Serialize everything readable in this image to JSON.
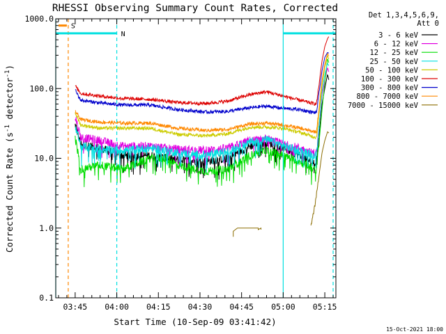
{
  "chart_data": {
    "type": "line",
    "title": "RHESSI Observing Summary Count Rates, Corrected",
    "xlabel": "Start Time (10-Sep-09 03:41:42)",
    "ylabel_main": "Corrected Count Rate (s",
    "ylabel_sup1": "-1",
    "ylabel_mid": " detector",
    "ylabel_sup2": "-1",
    "ylabel_end": ")",
    "xlim_min": [
      -4,
      97
    ],
    "ylim": [
      0.1,
      1000
    ],
    "y_scale": "log",
    "x_ticks": [
      {
        "min": 3,
        "label": "03:45"
      },
      {
        "min": 18,
        "label": "04:00"
      },
      {
        "min": 33,
        "label": "04:15"
      },
      {
        "min": 48,
        "label": "04:30"
      },
      {
        "min": 63,
        "label": "04:45"
      },
      {
        "min": 78,
        "label": "05:00"
      },
      {
        "min": 93,
        "label": "05:15"
      }
    ],
    "y_ticks": [
      {
        "v": 0.1,
        "label": "0.1"
      },
      {
        "v": 1,
        "label": "1.0"
      },
      {
        "v": 10,
        "label": "10.0"
      },
      {
        "v": 100,
        "label": "100.0"
      },
      {
        "v": 1000,
        "label": "1000.0"
      }
    ],
    "legend_header": [
      "Det 1,3,4,5,6,9,",
      "Att 0"
    ],
    "series": [
      {
        "name": "3 - 6 keV",
        "color": "#000000",
        "points": [
          [
            3,
            30
          ],
          [
            5,
            16
          ],
          [
            12,
            14
          ],
          [
            20,
            11
          ],
          [
            30,
            11
          ],
          [
            40,
            9.5
          ],
          [
            50,
            9
          ],
          [
            58,
            10
          ],
          [
            66,
            15
          ],
          [
            72,
            17
          ],
          [
            78,
            14
          ],
          [
            84,
            11
          ],
          [
            88,
            9
          ],
          [
            90,
            8.5
          ],
          [
            92,
            60
          ],
          [
            93,
            100
          ],
          [
            94,
            160
          ],
          [
            94.5,
            130
          ]
        ]
      },
      {
        "name": "6 - 12 keV",
        "color": "#e000e0",
        "points": [
          [
            3,
            40
          ],
          [
            5,
            20
          ],
          [
            12,
            18
          ],
          [
            20,
            15
          ],
          [
            30,
            15
          ],
          [
            40,
            13.5
          ],
          [
            50,
            13
          ],
          [
            58,
            14
          ],
          [
            66,
            18
          ],
          [
            72,
            19
          ],
          [
            78,
            16
          ],
          [
            84,
            14
          ],
          [
            88,
            12
          ],
          [
            90,
            12
          ],
          [
            92,
            80
          ],
          [
            93,
            130
          ],
          [
            94,
            200
          ],
          [
            94.5,
            170
          ]
        ]
      },
      {
        "name": "12 - 25 keV",
        "color": "#00dd00",
        "points": [
          [
            3,
            20
          ],
          [
            5,
            7
          ],
          [
            12,
            8
          ],
          [
            20,
            7
          ],
          [
            30,
            10
          ],
          [
            36,
            10
          ],
          [
            40,
            8
          ],
          [
            50,
            6.5
          ],
          [
            58,
            7
          ],
          [
            66,
            11
          ],
          [
            72,
            13
          ],
          [
            78,
            11
          ],
          [
            84,
            9
          ],
          [
            88,
            7.5
          ],
          [
            90,
            6.5
          ],
          [
            92,
            50
          ],
          [
            93,
            120
          ],
          [
            94,
            270
          ],
          [
            94.5,
            230
          ]
        ]
      },
      {
        "name": "25 - 50 keV",
        "color": "#00e0e0",
        "points": [
          [
            3,
            30
          ],
          [
            5,
            15
          ],
          [
            12,
            13.5
          ],
          [
            20,
            13
          ],
          [
            30,
            14
          ],
          [
            40,
            12
          ],
          [
            50,
            11
          ],
          [
            58,
            12.5
          ],
          [
            66,
            17
          ],
          [
            72,
            18.5
          ],
          [
            78,
            15
          ],
          [
            84,
            13
          ],
          [
            88,
            11.5
          ],
          [
            90,
            11
          ],
          [
            92,
            90
          ],
          [
            93,
            160
          ],
          [
            94,
            230
          ],
          [
            94.5,
            210
          ]
        ]
      },
      {
        "name": "50 - 100 keV",
        "color": "#cccc00",
        "points": [
          [
            3,
            45
          ],
          [
            5,
            30
          ],
          [
            12,
            27
          ],
          [
            20,
            27
          ],
          [
            30,
            27
          ],
          [
            40,
            22
          ],
          [
            50,
            21
          ],
          [
            58,
            22.5
          ],
          [
            66,
            28
          ],
          [
            72,
            28
          ],
          [
            78,
            27
          ],
          [
            84,
            23.5
          ],
          [
            88,
            21
          ],
          [
            90,
            20
          ],
          [
            92,
            110
          ],
          [
            93,
            200
          ],
          [
            94,
            300
          ],
          [
            94.5,
            260
          ]
        ]
      },
      {
        "name": "100 - 300 keV",
        "color": "#dd0000",
        "points": [
          [
            3,
            110
          ],
          [
            5,
            85
          ],
          [
            12,
            78
          ],
          [
            20,
            72
          ],
          [
            30,
            70
          ],
          [
            40,
            63
          ],
          [
            50,
            61
          ],
          [
            58,
            66
          ],
          [
            66,
            82
          ],
          [
            72,
            90
          ],
          [
            78,
            78
          ],
          [
            84,
            68
          ],
          [
            88,
            62
          ],
          [
            90,
            60
          ],
          [
            92,
            250
          ],
          [
            93,
            400
          ],
          [
            94,
            520
          ],
          [
            94.5,
            560
          ]
        ]
      },
      {
        "name": "300 - 800 keV",
        "color": "#0000cc",
        "points": [
          [
            3,
            95
          ],
          [
            5,
            68
          ],
          [
            12,
            62
          ],
          [
            20,
            58
          ],
          [
            30,
            58
          ],
          [
            40,
            50
          ],
          [
            50,
            46
          ],
          [
            58,
            47
          ],
          [
            66,
            53
          ],
          [
            72,
            56
          ],
          [
            78,
            52
          ],
          [
            84,
            50
          ],
          [
            88,
            46
          ],
          [
            90,
            45
          ],
          [
            92,
            180
          ],
          [
            93,
            280
          ],
          [
            94,
            330
          ],
          [
            94.5,
            320
          ]
        ]
      },
      {
        "name": "800 - 7000 keV",
        "color": "#ff8800",
        "points": [
          [
            3,
            48
          ],
          [
            5,
            36
          ],
          [
            12,
            33
          ],
          [
            20,
            32
          ],
          [
            30,
            32
          ],
          [
            40,
            27
          ],
          [
            50,
            25
          ],
          [
            58,
            26
          ],
          [
            66,
            31
          ],
          [
            72,
            32
          ],
          [
            78,
            30
          ],
          [
            84,
            27
          ],
          [
            88,
            24.5
          ],
          [
            90,
            24
          ],
          [
            92,
            130
          ],
          [
            93,
            220
          ],
          [
            94,
            320
          ],
          [
            94.5,
            290
          ]
        ]
      },
      {
        "name": "7000 - 15000 keV",
        "color": "#8b6c00",
        "points": [
          [
            88,
            1.05
          ],
          [
            89.5,
            2.2
          ],
          [
            91,
            6
          ],
          [
            92,
            12
          ],
          [
            93,
            18
          ],
          [
            94,
            24
          ],
          [
            94.5,
            23
          ]
        ]
      }
    ],
    "s7000_extra": [
      [
        60,
        0.75
      ],
      [
        60,
        0.9
      ],
      [
        61.5,
        1.0
      ],
      [
        69,
        1.0
      ],
      [
        69,
        0.95
      ],
      [
        70,
        1.0
      ],
      [
        70,
        0.95
      ]
    ],
    "fill_bars": [
      {
        "label": "S",
        "color": "#ff8800",
        "x0": -3,
        "x1": 0,
        "v": 800
      },
      {
        "label": "N",
        "color": "#00e0e0",
        "x0": -4,
        "x1": 18,
        "v": 620
      },
      {
        "label": "",
        "color": "#00e0e0",
        "x0": 78,
        "x1": 97,
        "v": 620
      }
    ],
    "vlines": [
      {
        "min": -4,
        "color": "#00e0e0",
        "style": "solid"
      },
      {
        "min": 0.5,
        "color": "#ff8800",
        "style": "dashed"
      },
      {
        "min": 18,
        "color": "#00e0e0",
        "style": "dashed"
      },
      {
        "min": 78,
        "color": "#00e0e0",
        "style": "solid"
      },
      {
        "min": 96,
        "color": "#00e0e0",
        "style": "dashed"
      }
    ],
    "grid": false,
    "legend_placement": "top-right"
  },
  "footer": {
    "timestamp": "15-Oct-2021 18:00"
  },
  "colors": {
    "axes": "#000000",
    "background": "#ffffff"
  }
}
